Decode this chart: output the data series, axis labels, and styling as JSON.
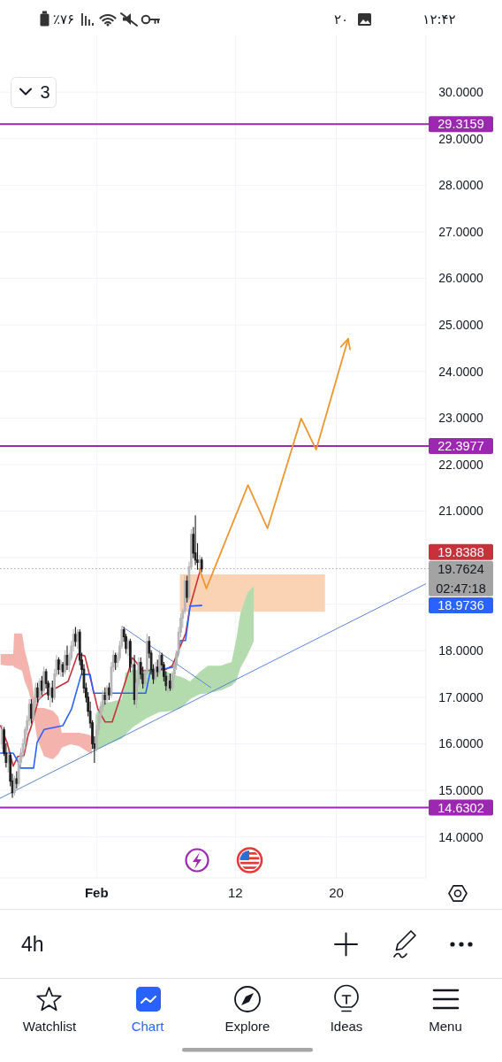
{
  "chart_data": {
    "type": "candlestick",
    "xlim": [
      -6.65,
      27.1
    ],
    "xticks": [
      {
        "value": 1,
        "label": "Feb"
      },
      12,
      20
    ],
    "ylim": [
      13.12,
      31.22
    ],
    "yticks": [
      {
        "value": 14,
        "label": "14.0000"
      },
      {
        "value": 15,
        "label": "15.0000"
      },
      {
        "value": 16,
        "label": "16.0000"
      },
      {
        "value": 17,
        "label": "17.0000"
      },
      {
        "value": 18,
        "label": "18.0000"
      },
      {
        "value": 19,
        "label": null
      },
      {
        "value": 20,
        "label": null
      },
      {
        "value": 21,
        "label": "21.0000"
      },
      {
        "value": 22,
        "label": "22.0000"
      },
      {
        "value": 23,
        "label": "23.0000"
      },
      {
        "value": 24,
        "label": "24.0000"
      },
      {
        "value": 25,
        "label": "25.0000"
      },
      {
        "value": 26,
        "label": "26.0000"
      },
      {
        "value": 27,
        "label": "27.0000"
      },
      {
        "value": 28,
        "label": "28.0000"
      },
      {
        "value": 29,
        "label": "29.0000"
      },
      {
        "value": 30,
        "label": "30.0000"
      }
    ],
    "grid": true,
    "x": [
      -6.5,
      -6.33,
      -6.17,
      -6.0,
      -5.83,
      -5.67,
      -5.5,
      -5.33,
      -5.17,
      -5.0,
      -4.83,
      -4.67,
      -4.5,
      -4.33,
      -4.17,
      -4.0,
      -3.83,
      -3.67,
      -3.5,
      -3.33,
      -3.17,
      -3.0,
      -2.83,
      -2.67,
      -2.5,
      -2.33,
      -2.17,
      -2.0,
      -1.83,
      -1.67,
      -1.5,
      -1.33,
      -1.17,
      -1.0,
      -0.83,
      -0.67,
      -0.5,
      -0.33,
      -0.17,
      0.0,
      0.17,
      0.33,
      0.5,
      0.67,
      0.83,
      1.0,
      1.17,
      1.33,
      1.5,
      1.67,
      1.83,
      2.0,
      2.17,
      2.33,
      2.5,
      2.67,
      2.83,
      3.0,
      3.17,
      3.33,
      3.5,
      3.67,
      3.83,
      4.0,
      4.17,
      4.33,
      4.5,
      4.67,
      4.83,
      5.0,
      5.17,
      5.33,
      5.5,
      5.67,
      5.83,
      6.0,
      6.17,
      6.33,
      6.5,
      6.67,
      6.83,
      7.0,
      7.17,
      7.33,
      7.5,
      7.67,
      7.83,
      8.0,
      8.17,
      8.33,
      8.5,
      8.67,
      8.83,
      9.0,
      9.17,
      9.33
    ],
    "ohlc": [
      [
        16.0,
        16.4,
        15.9,
        16.3
      ],
      [
        16.3,
        16.35,
        15.75,
        15.8
      ],
      [
        15.8,
        16.0,
        15.5,
        15.6
      ],
      [
        15.6,
        15.85,
        15.4,
        15.75
      ],
      [
        15.75,
        15.8,
        15.1,
        15.2
      ],
      [
        15.2,
        15.35,
        14.85,
        14.95
      ],
      [
        14.95,
        15.3,
        14.9,
        15.25
      ],
      [
        15.25,
        15.4,
        15.05,
        15.15
      ],
      [
        15.15,
        15.7,
        15.1,
        15.6
      ],
      [
        15.6,
        15.9,
        15.5,
        15.8
      ],
      [
        15.8,
        16.1,
        15.7,
        16.0
      ],
      [
        16.0,
        16.35,
        15.9,
        16.3
      ],
      [
        16.3,
        16.6,
        16.2,
        16.5
      ],
      [
        16.5,
        16.95,
        16.4,
        16.85
      ],
      [
        16.85,
        16.95,
        16.45,
        16.55
      ],
      [
        16.55,
        17.0,
        16.5,
        16.9
      ],
      [
        16.9,
        17.3,
        16.8,
        17.2
      ],
      [
        17.2,
        17.3,
        16.9,
        17.0
      ],
      [
        17.0,
        17.4,
        16.95,
        17.35
      ],
      [
        17.35,
        17.45,
        17.05,
        17.15
      ],
      [
        17.15,
        17.65,
        17.1,
        17.55
      ],
      [
        17.55,
        17.6,
        17.2,
        17.3
      ],
      [
        17.3,
        17.35,
        16.95,
        17.05
      ],
      [
        17.05,
        17.3,
        16.8,
        17.2
      ],
      [
        17.2,
        17.35,
        16.9,
        17.0
      ],
      [
        17.0,
        17.6,
        16.95,
        17.5
      ],
      [
        17.5,
        17.9,
        17.45,
        17.8
      ],
      [
        17.8,
        17.85,
        17.5,
        17.6
      ],
      [
        17.6,
        17.8,
        17.45,
        17.7
      ],
      [
        17.7,
        17.75,
        17.45,
        17.55
      ],
      [
        17.55,
        18.0,
        17.5,
        17.9
      ],
      [
        17.9,
        18.1,
        17.6,
        17.7
      ],
      [
        17.7,
        17.95,
        17.55,
        17.85
      ],
      [
        17.85,
        18.2,
        17.8,
        18.1
      ],
      [
        18.1,
        18.45,
        18.0,
        18.35
      ],
      [
        18.35,
        18.5,
        18.1,
        18.2
      ],
      [
        18.2,
        18.45,
        18.05,
        18.4
      ],
      [
        18.4,
        18.45,
        17.7,
        17.8
      ],
      [
        17.8,
        17.95,
        17.5,
        17.6
      ],
      [
        17.6,
        17.7,
        17.1,
        17.2
      ],
      [
        17.2,
        17.3,
        16.9,
        17.0
      ],
      [
        17.0,
        17.1,
        16.6,
        16.7
      ],
      [
        16.7,
        16.9,
        16.35,
        16.45
      ],
      [
        16.45,
        16.5,
        15.9,
        16.0
      ],
      [
        16.0,
        16.15,
        15.6,
        15.9
      ],
      [
        15.9,
        16.4,
        15.85,
        16.3
      ],
      [
        16.3,
        16.7,
        16.2,
        16.6
      ],
      [
        16.6,
        16.9,
        16.45,
        16.8
      ],
      [
        16.8,
        17.15,
        16.7,
        17.05
      ],
      [
        17.05,
        17.2,
        16.85,
        16.95
      ],
      [
        16.95,
        17.25,
        16.9,
        17.2
      ],
      [
        17.2,
        17.3,
        16.95,
        17.05
      ],
      [
        17.05,
        17.75,
        17.0,
        17.65
      ],
      [
        17.65,
        18.0,
        17.55,
        17.9
      ],
      [
        17.9,
        17.95,
        17.6,
        17.75
      ],
      [
        17.75,
        17.95,
        17.65,
        17.85
      ],
      [
        17.85,
        18.2,
        17.8,
        18.1
      ],
      [
        18.1,
        18.52,
        18.05,
        18.45
      ],
      [
        18.45,
        18.5,
        18.2,
        18.3
      ],
      [
        18.3,
        18.35,
        17.95,
        18.05
      ],
      [
        18.05,
        18.25,
        17.9,
        18.2
      ],
      [
        18.2,
        18.25,
        17.55,
        17.65
      ],
      [
        17.65,
        17.8,
        17.5,
        17.7
      ],
      [
        17.7,
        17.9,
        16.85,
        16.95
      ],
      [
        16.95,
        17.4,
        16.77,
        17.3
      ],
      [
        17.3,
        17.85,
        17.25,
        17.75
      ],
      [
        17.75,
        17.85,
        17.4,
        17.5
      ],
      [
        17.5,
        17.65,
        17.2,
        17.3
      ],
      [
        17.3,
        17.6,
        17.25,
        17.55
      ],
      [
        17.55,
        18.35,
        17.5,
        18.2
      ],
      [
        18.2,
        18.3,
        17.85,
        17.95
      ],
      [
        17.95,
        18.0,
        17.5,
        17.6
      ],
      [
        17.6,
        17.7,
        17.3,
        17.4
      ],
      [
        17.4,
        17.75,
        17.35,
        17.65
      ],
      [
        17.65,
        17.8,
        17.45,
        17.55
      ],
      [
        17.55,
        18.0,
        17.5,
        17.9
      ],
      [
        17.9,
        17.95,
        17.6,
        17.7
      ],
      [
        17.7,
        17.75,
        17.35,
        17.45
      ],
      [
        17.45,
        17.55,
        17.15,
        17.25
      ],
      [
        17.25,
        17.45,
        17.1,
        17.35
      ],
      [
        17.35,
        17.5,
        17.15,
        17.2
      ],
      [
        17.2,
        17.55,
        17.15,
        17.5
      ],
      [
        17.5,
        17.75,
        17.4,
        17.7
      ],
      [
        17.7,
        18.0,
        17.6,
        17.95
      ],
      [
        17.95,
        18.5,
        17.9,
        18.4
      ],
      [
        18.4,
        18.8,
        18.3,
        18.7
      ],
      [
        18.7,
        18.9,
        18.5,
        18.85
      ],
      [
        18.85,
        19.6,
        18.8,
        19.5
      ],
      [
        19.5,
        19.6,
        19.05,
        19.15
      ],
      [
        19.15,
        19.9,
        19.1,
        19.8
      ],
      [
        19.8,
        20.6,
        19.75,
        20.5
      ],
      [
        20.5,
        20.65,
        20.0,
        20.1
      ],
      [
        20.1,
        20.9,
        19.85,
        19.95
      ],
      [
        19.95,
        20.3,
        19.75,
        19.9
      ],
      [
        19.9,
        20.05,
        19.8,
        19.95
      ],
      [
        19.95,
        20.0,
        19.7,
        19.7624
      ]
    ],
    "colors": [
      "#b5b5b5",
      "#1c1c1c",
      "#1c1c1c",
      "#b5b5b5",
      "#1c1c1c",
      "#1c1c1c",
      "#b5b5b5",
      "#1c1c1c",
      "#b5b5b5",
      "#b5b5b5",
      "#b5b5b5",
      "#b5b5b5",
      "#b5b5b5",
      "#b5b5b5",
      "#1c1c1c",
      "#b5b5b5",
      "#b5b5b5",
      "#1c1c1c",
      "#b5b5b5",
      "#1c1c1c",
      "#b5b5b5",
      "#1c1c1c",
      "#1c1c1c",
      "#b5b5b5",
      "#1c1c1c",
      "#b5b5b5",
      "#b5b5b5",
      "#1c1c1c",
      "#b5b5b5",
      "#1c1c1c",
      "#b5b5b5",
      "#1c1c1c",
      "#b5b5b5",
      "#b5b5b5",
      "#b5b5b5",
      "#1c1c1c",
      "#b5b5b5",
      "#1c1c1c",
      "#1c1c1c",
      "#1c1c1c",
      "#1c1c1c",
      "#1c1c1c",
      "#1c1c1c",
      "#1c1c1c",
      "#1c1c1c",
      "#b5b5b5",
      "#b5b5b5",
      "#b5b5b5",
      "#b5b5b5",
      "#1c1c1c",
      "#b5b5b5",
      "#1c1c1c",
      "#b5b5b5",
      "#b5b5b5",
      "#1c1c1c",
      "#b5b5b5",
      "#b5b5b5",
      "#b5b5b5",
      "#1c1c1c",
      "#1c1c1c",
      "#b5b5b5",
      "#1c1c1c",
      "#b5b5b5",
      "#1c1c1c",
      "#b5b5b5",
      "#b5b5b5",
      "#1c1c1c",
      "#1c1c1c",
      "#b5b5b5",
      "#b5b5b5",
      "#1c1c1c",
      "#1c1c1c",
      "#1c1c1c",
      "#b5b5b5",
      "#1c1c1c",
      "#b5b5b5",
      "#1c1c1c",
      "#1c1c1c",
      "#1c1c1c",
      "#b5b5b5",
      "#1c1c1c",
      "#b5b5b5",
      "#b5b5b5",
      "#b5b5b5",
      "#b5b5b5",
      "#b5b5b5",
      "#b5b5b5",
      "#b5b5b5",
      "#1c1c1c",
      "#b5b5b5",
      "#b5b5b5",
      "#1c1c1c",
      "#1c1c1c",
      "#1c1c1c",
      "#b5b5b5",
      "#1c1c1c"
    ],
    "series": [
      {
        "type": "area",
        "color": "#f9d3b4",
        "x": [
          7.6,
          19.1
        ],
        "values": [
          null,
          null
        ],
        "lower": [
          18.84,
          18.84
        ],
        "upper": [
          19.64,
          19.64
        ]
      },
      {
        "type": "area",
        "color": "#f5b3ae",
        "x": [
          -6.6,
          -6.09,
          -5.6,
          -5.53,
          -4.9,
          -4.69,
          -4.41,
          -4.13,
          -3.92,
          -3.71,
          -3.15,
          -2.45,
          -2.03,
          -1.75,
          -1.05,
          -0.35,
          0.35,
          0.63
        ],
        "values": [
          null,
          null,
          null,
          null,
          null,
          null,
          null,
          null,
          null,
          null,
          null,
          null,
          null,
          null,
          null,
          null,
          null,
          null
        ],
        "lower": [
          17.7,
          17.68,
          17.68,
          17.65,
          17.57,
          17.34,
          17.15,
          16.87,
          16.49,
          16.11,
          15.73,
          15.67,
          15.78,
          15.92,
          15.99,
          15.95,
          15.82,
          15.78
        ],
        "upper": [
          17.93,
          17.93,
          17.93,
          18.37,
          18.37,
          18.01,
          17.72,
          17.38,
          16.96,
          16.77,
          16.77,
          16.71,
          16.58,
          16.24,
          16.24,
          16.24,
          16.2,
          16.16
        ]
      },
      {
        "type": "area",
        "color": "#b3dbad",
        "x": [
          0.91,
          1.4,
          2.1,
          3.01,
          3.29,
          3.85,
          4.9,
          5.95,
          7.01,
          7.71,
          8.41,
          9.11,
          9.81,
          10.86,
          11.7,
          12.05,
          12.4,
          12.96,
          13.45
        ],
        "values": [
          null,
          null,
          null,
          null,
          null,
          null,
          null,
          null,
          null,
          null,
          null,
          null,
          null,
          null,
          null,
          null,
          null,
          null,
          null
        ],
        "lower": [
          15.88,
          15.92,
          16.01,
          16.11,
          16.2,
          16.35,
          16.54,
          16.68,
          16.71,
          16.77,
          16.96,
          17.06,
          17.09,
          17.15,
          17.25,
          17.34,
          17.63,
          17.91,
          18.2
        ],
        "upper": [
          16.62,
          16.87,
          16.9,
          16.96,
          17.53,
          17.59,
          17.59,
          17.63,
          17.49,
          17.44,
          17.34,
          17.53,
          17.68,
          17.68,
          17.76,
          18.22,
          18.81,
          19.24,
          19.39
        ]
      },
      {
        "type": "line",
        "color": "#5b86d6",
        "x": [
          -6.65,
          27.1
        ],
        "values": [
          14.83,
          19.44
        ]
      },
      {
        "type": "line",
        "color": "#5b86d6",
        "x": [
          3.04,
          10.05
        ],
        "values": [
          18.52,
          17.21
        ]
      },
      {
        "type": "line",
        "color": "#c8303a",
        "x": [
          -6.6,
          -6.09,
          -5.6,
          -5.25,
          -4.75,
          -4.41,
          -4.2,
          -3.6,
          -3.15,
          -1.26,
          -0.49,
          0.07,
          0.7,
          1.1,
          1.68,
          2.24,
          3.29,
          3.85,
          4.69,
          6.5,
          7.0,
          8.06,
          8.41,
          9.33
        ],
        "values": [
          16.39,
          16.03,
          15.52,
          15.73,
          15.75,
          16.2,
          16.35,
          16.95,
          17.06,
          17.34,
          17.93,
          17.89,
          17.2,
          16.75,
          16.47,
          16.47,
          17.34,
          17.85,
          17.57,
          17.6,
          17.68,
          18.37,
          18.96,
          19.8388
        ]
      },
      {
        "type": "line",
        "color": "#2962ff",
        "x": [
          -6.6,
          -5.6,
          -5.25,
          -5.04,
          -3.99,
          -3.71,
          -3.15,
          -1.68,
          -0.98,
          -0.21,
          0.49,
          0.77,
          4.9,
          5.25,
          7.25,
          7.64,
          8.05,
          8.41,
          9.33
        ],
        "values": [
          15.8,
          15.8,
          15.63,
          15.48,
          15.48,
          16.03,
          16.31,
          16.39,
          16.75,
          17.49,
          17.49,
          17.09,
          17.09,
          17.55,
          17.66,
          18.22,
          18.22,
          18.96,
          18.9736
        ]
      },
      {
        "type": "line",
        "color": "#f0962e",
        "x": [
          9.14,
          9.7,
          13.0,
          14.54,
          17.21,
          18.4,
          20.93
        ],
        "values": [
          19.76,
          19.34,
          21.56,
          20.63,
          22.99,
          22.32,
          24.7
        ]
      }
    ],
    "ref_lines": [
      {
        "axis": "y",
        "value": 29.3159,
        "label": "29.3159",
        "color": "#9c27b0"
      },
      {
        "axis": "y",
        "value": 22.3977,
        "label": "22.3977",
        "color": "#9c27b0"
      },
      {
        "axis": "y",
        "value": 14.6302,
        "label": "14.6302",
        "color": "#9c27b0"
      },
      {
        "axis": "y",
        "value": 19.7624,
        "label": "19.7624",
        "color": "#a3a3a3",
        "line_style": "dotted"
      }
    ],
    "annotations": [
      "٪۷۶",
      "۲۰",
      "۱۲:۴۲",
      "3",
      "19.8388",
      "02:47:18",
      "18.9736",
      "4h",
      "Watchlist",
      "Chart",
      "Explore",
      "Ideas",
      "Menu"
    ]
  }
}
